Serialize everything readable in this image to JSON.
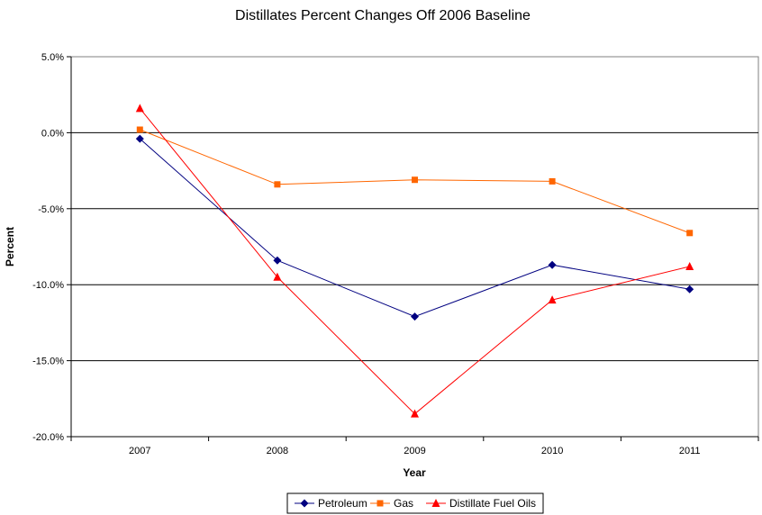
{
  "chart_data": {
    "type": "line",
    "title": "Distillates Percent Changes Off 2006 Baseline",
    "xlabel": "Year",
    "ylabel": "Percent",
    "categories": [
      "2007",
      "2008",
      "2009",
      "2010",
      "2011"
    ],
    "ylim": [
      -20,
      5
    ],
    "yticks": [
      5,
      0,
      -5,
      -10,
      -15,
      -20
    ],
    "ytick_labels": [
      "5.0%",
      "0.0%",
      "-5.0%",
      "-10.0%",
      "-15.0%",
      "-20.0%"
    ],
    "gridlines": true,
    "legend_position": "bottom",
    "series": [
      {
        "name": "Petroleum",
        "color": "#000080",
        "marker": "diamond",
        "values": [
          -0.4,
          -8.4,
          -12.1,
          -8.7,
          -10.3
        ]
      },
      {
        "name": "Gas",
        "color": "#ff6600",
        "marker": "square",
        "values": [
          0.2,
          -3.4,
          -3.1,
          -3.2,
          -6.6
        ]
      },
      {
        "name": "Distillate Fuel Oils",
        "color": "#ff0000",
        "marker": "triangle",
        "values": [
          1.6,
          -9.5,
          -18.5,
          -11.0,
          -8.8
        ]
      }
    ]
  }
}
